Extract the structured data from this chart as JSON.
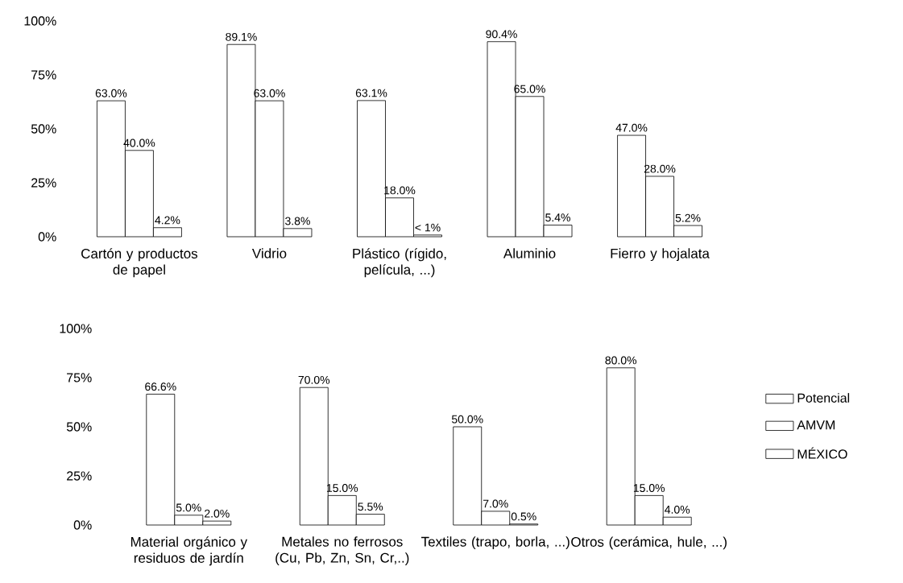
{
  "chart_data": [
    {
      "type": "bar",
      "categories": [
        "Cartón y productos de papel",
        "Vidrio",
        "Plástico (rígido, película, ...)",
        "Aluminio",
        "Fierro y hojalata"
      ],
      "series": [
        {
          "color": "#ffffff",
          "values": [
            63.0,
            89.1,
            63.1,
            90.4,
            47.0
          ],
          "value_labels": [
            "63.0%",
            "89.1%",
            "63.1%",
            "90.4%",
            "47.0%"
          ]
        },
        {
          "color": "#ffffff",
          "values": [
            40.0,
            63.0,
            18.0,
            65.0,
            28.0
          ],
          "value_labels": [
            "40.0%",
            "63.0%",
            "18.0%",
            "65.0%",
            "28.0%"
          ]
        },
        {
          "color": "#ffffff",
          "values": [
            4.2,
            3.8,
            0.8,
            5.4,
            5.2
          ],
          "value_labels": [
            "4.2%",
            "3.8%",
            "< 1%",
            "5.4%",
            "5.2%"
          ]
        }
      ],
      "ylim": [
        0,
        100
      ],
      "yticks": [
        {
          "value": 0,
          "label": "0%"
        },
        {
          "value": 25,
          "label": "25%"
        },
        {
          "value": 50,
          "label": "50%"
        },
        {
          "value": 75,
          "label": "75%"
        },
        {
          "value": 100,
          "label": "100%"
        }
      ]
    },
    {
      "type": "bar",
      "categories": [
        "Material orgánico y residuos de jardín",
        "Metales no ferrosos (Cu, Pb, Zn, Sn, Cr,..)",
        "Textiles (trapo, borla, ...)",
        "Otros (cerámica, hule, ...)"
      ],
      "series": [
        {
          "name": "Potencial",
          "color": "#ffffff",
          "values": [
            66.6,
            70.0,
            50.0,
            80.0
          ],
          "value_labels": [
            "66.6%",
            "70.0%",
            "50.0%",
            "80.0%"
          ]
        },
        {
          "name": "AMVM",
          "color": "#ffffff",
          "values": [
            5.0,
            15.0,
            7.0,
            15.0
          ],
          "value_labels": [
            "5.0%",
            "15.0%",
            "7.0%",
            "15.0%"
          ]
        },
        {
          "name": "MÉXICO",
          "color": "#ffffff",
          "values": [
            2.0,
            5.5,
            0.5,
            4.0
          ],
          "value_labels": [
            "2.0%",
            "5.5%",
            "0.5%",
            "4.0%"
          ]
        }
      ],
      "ylim": [
        0,
        100
      ],
      "yticks": [
        {
          "value": 0,
          "label": "0%"
        },
        {
          "value": 25,
          "label": "25%"
        },
        {
          "value": 50,
          "label": "50%"
        },
        {
          "value": 75,
          "label": "75%"
        },
        {
          "value": 100,
          "label": "100%"
        }
      ],
      "legend": "right"
    }
  ]
}
